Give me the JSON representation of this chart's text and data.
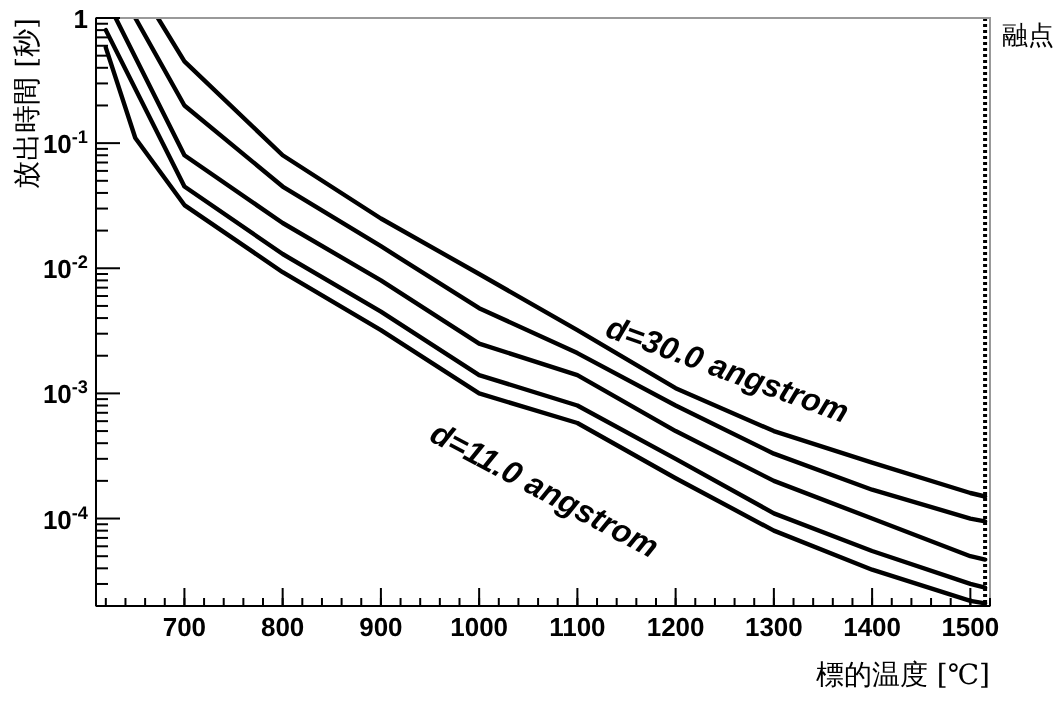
{
  "chart_data": {
    "type": "line",
    "xlabel": "標的温度 [℃]",
    "ylabel": "放出時間 [秒]",
    "log": "y",
    "grid": false,
    "marker": "none",
    "line_style": "solid",
    "xlim": [
      610,
      1520
    ],
    "ylim": [
      2e-05,
      1
    ],
    "xticks": [
      700,
      800,
      900,
      1000,
      1100,
      1200,
      1300,
      1400,
      1500
    ],
    "yticks": [
      {
        "value": 0.0001,
        "label": "10$^{-4}$"
      },
      {
        "value": 0.001,
        "label": "10$^{-3}$"
      },
      {
        "value": 0.01,
        "label": "10$^{-2}$"
      },
      {
        "value": 0.1,
        "label": "10$^{-1}$"
      },
      1
    ],
    "series": [
      {
        "color": "#000000",
        "x": [
          620,
          650,
          700,
          800,
          900,
          1000,
          1100,
          1200,
          1300,
          1400,
          1500,
          1515
        ],
        "values": [
          0.58,
          0.11,
          0.032,
          0.0093,
          0.0032,
          0.001,
          0.00058,
          0.00021,
          8e-05,
          3.9e-05,
          2.2e-05,
          2.1e-05
        ]
      },
      {
        "color": "#000000",
        "x": [
          620,
          700,
          800,
          900,
          1000,
          1100,
          1200,
          1300,
          1400,
          1500,
          1515
        ],
        "values": [
          0.8,
          0.045,
          0.013,
          0.0045,
          0.0014,
          0.0008,
          0.0003,
          0.00011,
          5.5e-05,
          3e-05,
          2.8e-05
        ]
      },
      {
        "color": "#000000",
        "x": [
          630,
          700,
          800,
          900,
          1000,
          1100,
          1200,
          1300,
          1400,
          1500,
          1515
        ],
        "values": [
          1,
          0.08,
          0.023,
          0.008,
          0.0025,
          0.0014,
          0.0005,
          0.0002,
          0.0001,
          5e-05,
          4.7e-05
        ]
      },
      {
        "color": "#000000",
        "x": [
          650,
          700,
          800,
          900,
          1000,
          1100,
          1200,
          1300,
          1400,
          1500,
          1515
        ],
        "values": [
          1,
          0.2,
          0.045,
          0.015,
          0.0048,
          0.0021,
          0.0008,
          0.00033,
          0.00017,
          0.0001,
          9.5e-05
        ]
      },
      {
        "color": "#000000",
        "x": [
          673,
          700,
          800,
          900,
          1000,
          1100,
          1200,
          1300,
          1400,
          1500,
          1515
        ],
        "values": [
          1,
          0.45,
          0.08,
          0.025,
          0.009,
          0.0032,
          0.0011,
          0.0005,
          0.00028,
          0.00016,
          0.00015
        ]
      }
    ],
    "ref_lines": [
      {
        "axis": "x",
        "value": 1515,
        "label": "融点",
        "line_style": "dotted",
        "color": "#000000"
      }
    ],
    "annotations": [
      "d=30.0 angstrom",
      "d=11.0 angstrom"
    ]
  }
}
